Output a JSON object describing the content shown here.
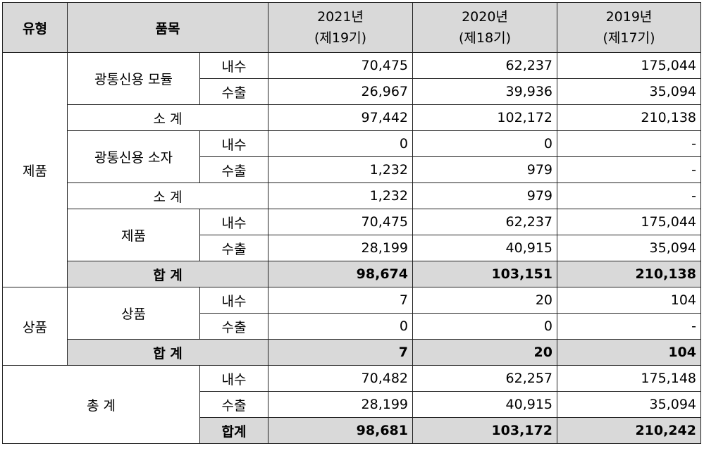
{
  "header": {
    "type": "유형",
    "item": "품목",
    "years": [
      {
        "year": "2021년",
        "term": "(제19기)"
      },
      {
        "year": "2020년",
        "term": "(제18기)"
      },
      {
        "year": "2019년",
        "term": "(제17기)"
      }
    ]
  },
  "rows": {
    "product_label": "제품",
    "goods_label": "상품",
    "grand_label": "총 계",
    "optical_module": "광통신용 모듈",
    "optical_device": "광통신용 소자",
    "product_item": "제품",
    "goods_item": "상품",
    "domestic": "내수",
    "export": "수출",
    "subtotal": "소 계",
    "total": "합 계",
    "grand_total_sub": "합계",
    "module_domestic": [
      "70,475",
      "62,237",
      "175,044"
    ],
    "module_export": [
      "26,967",
      "39,936",
      "35,094"
    ],
    "module_subtotal": [
      "97,442",
      "102,172",
      "210,138"
    ],
    "device_domestic": [
      "0",
      "0",
      "-"
    ],
    "device_export": [
      "1,232",
      "979",
      "-"
    ],
    "device_subtotal": [
      "1,232",
      "979",
      "-"
    ],
    "product_domestic": [
      "70,475",
      "62,237",
      "175,044"
    ],
    "product_export": [
      "28,199",
      "40,915",
      "35,094"
    ],
    "product_total": [
      "98,674",
      "103,151",
      "210,138"
    ],
    "goods_domestic": [
      "7",
      "20",
      "104"
    ],
    "goods_export": [
      "0",
      "0",
      "-"
    ],
    "goods_total": [
      "7",
      "20",
      "104"
    ],
    "grand_domestic": [
      "70,482",
      "62,257",
      "175,148"
    ],
    "grand_export": [
      "28,199",
      "40,915",
      "35,094"
    ],
    "grand_total": [
      "98,681",
      "103,172",
      "210,242"
    ]
  }
}
